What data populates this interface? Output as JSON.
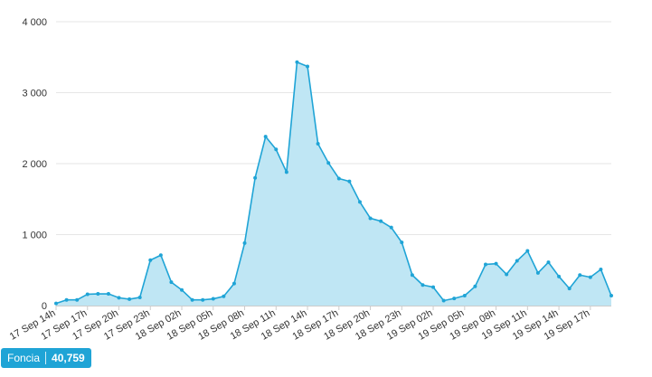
{
  "chart_data": {
    "type": "area",
    "title": "",
    "xlabel": "",
    "ylabel": "",
    "ylim": [
      0,
      4000
    ],
    "yticks": [
      0,
      1000,
      2000,
      3000,
      4000
    ],
    "ytick_labels": [
      "0",
      "1 000",
      "2 000",
      "3 000",
      "4 000"
    ],
    "grid": true,
    "x_tick_labels": [
      "17 Sep 14h",
      "17 Sep 17h",
      "17 Sep 20h",
      "17 Sep 23h",
      "18 Sep 02h",
      "18 Sep 05h",
      "18 Sep 08h",
      "18 Sep 11h",
      "18 Sep 14h",
      "18 Sep 17h",
      "18 Sep 20h",
      "18 Sep 23h",
      "19 Sep 02h",
      "19 Sep 05h",
      "19 Sep 08h",
      "19 Sep 11h",
      "19 Sep 14h",
      "19 Sep 17h"
    ],
    "series": [
      {
        "color": "#1fa4d6",
        "fill": "#bfe6f4",
        "values": [
          30,
          80,
          80,
          160,
          165,
          165,
          110,
          90,
          115,
          640,
          710,
          330,
          220,
          80,
          80,
          95,
          130,
          310,
          880,
          1800,
          2380,
          2200,
          1880,
          3430,
          3370,
          2280,
          2010,
          1790,
          1750,
          1460,
          1230,
          1190,
          1100,
          890,
          430,
          290,
          260,
          70,
          100,
          140,
          270,
          580,
          590,
          440,
          630,
          770,
          460,
          610,
          410,
          240,
          430,
          400,
          510,
          140
        ]
      }
    ]
  },
  "badge": {
    "label": "Foncia",
    "value": "40,759"
  },
  "colors": {
    "line": "#1fa4d6",
    "fill": "#bfe6f4",
    "grid": "#e6e6e6",
    "badge": "#1fa4d6"
  }
}
